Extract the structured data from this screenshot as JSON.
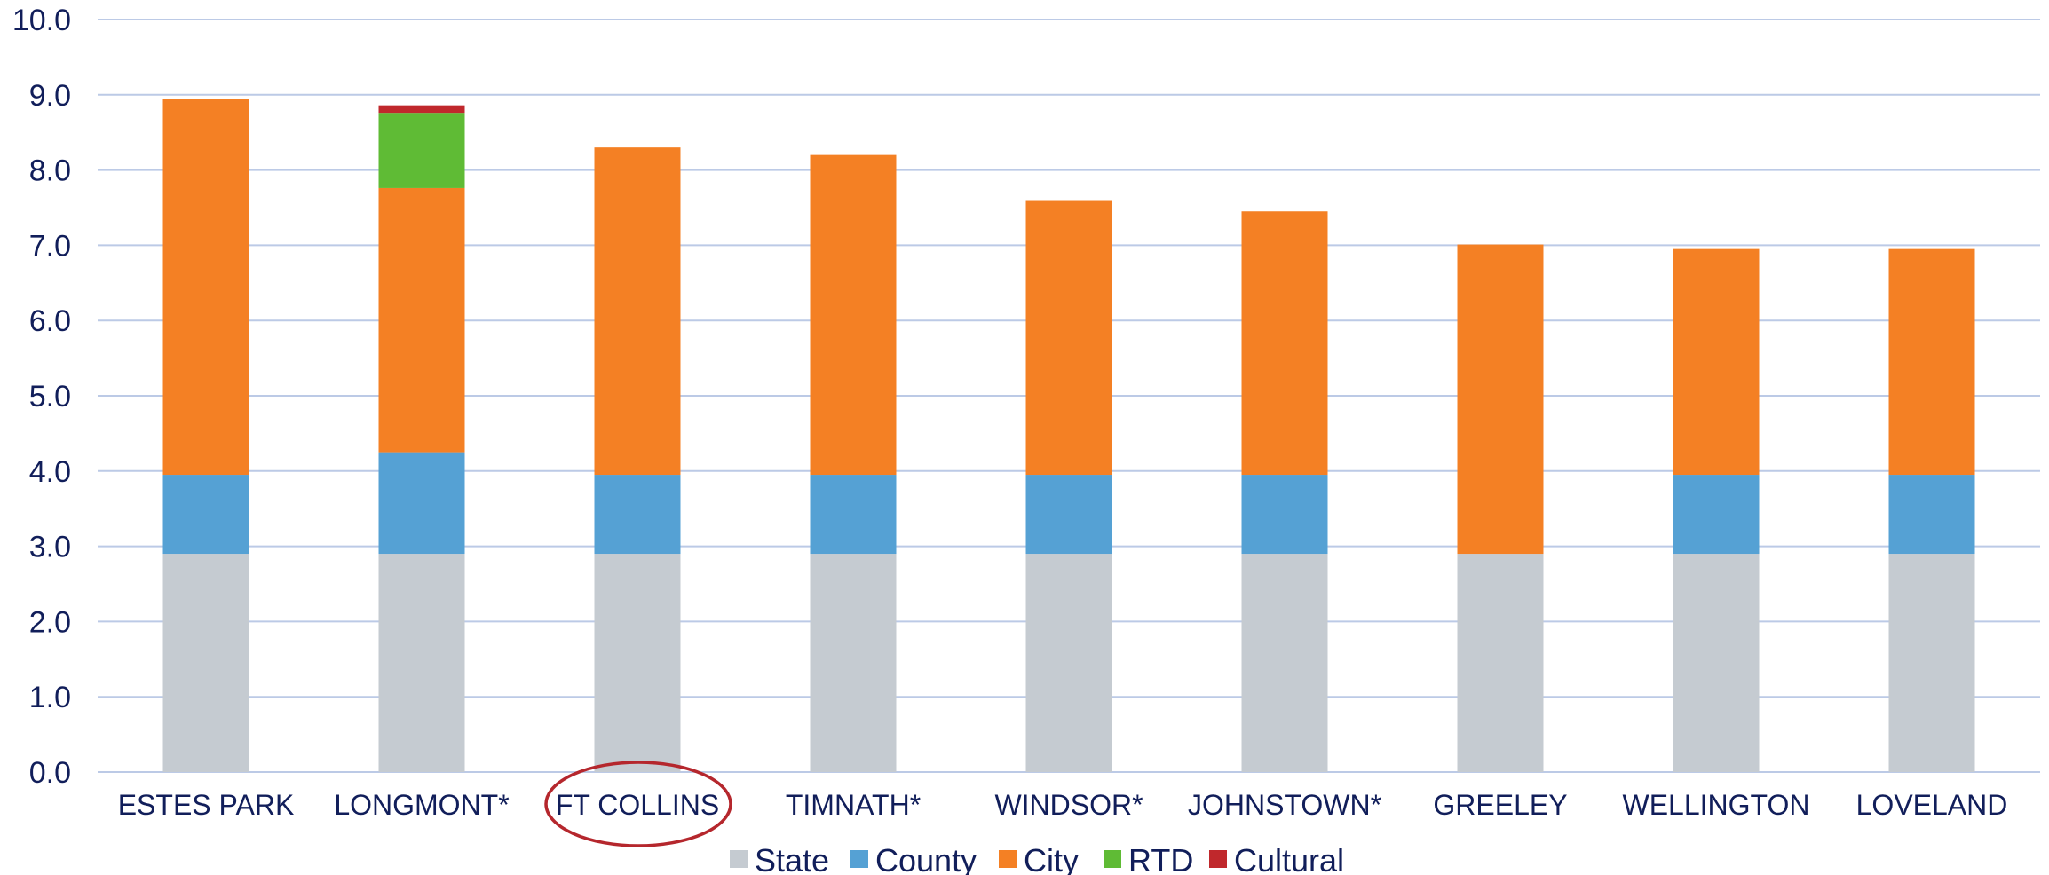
{
  "chart_data": {
    "type": "bar",
    "stacked": true,
    "categories": [
      "ESTES PARK",
      "LONGMONT*",
      "FT COLLINS",
      "TIMNATH*",
      "WINDSOR*",
      "JOHNSTOWN*",
      "GREELEY",
      "WELLINGTON",
      "LOVELAND"
    ],
    "series": [
      {
        "name": "State",
        "color": "#c5cbd1",
        "values": [
          2.9,
          2.9,
          2.9,
          2.9,
          2.9,
          2.9,
          2.9,
          2.9,
          2.9
        ]
      },
      {
        "name": "County",
        "color": "#55a1d4",
        "values": [
          1.05,
          1.35,
          1.05,
          1.05,
          1.05,
          1.05,
          0,
          1.05,
          1.05
        ]
      },
      {
        "name": "City",
        "color": "#f48024",
        "values": [
          5.0,
          3.51,
          4.35,
          4.25,
          3.65,
          3.5,
          4.11,
          3.0,
          3.0
        ]
      },
      {
        "name": "RTD",
        "color": "#5fbb35",
        "values": [
          0,
          1.0,
          0,
          0,
          0,
          0,
          0,
          0,
          0
        ]
      },
      {
        "name": "Cultural",
        "color": "#c0282c",
        "values": [
          0,
          0.1,
          0,
          0,
          0,
          0,
          0,
          0,
          0
        ]
      }
    ],
    "ylim": [
      0,
      10
    ],
    "yticks": [
      "0.0",
      "1.0",
      "2.0",
      "3.0",
      "4.0",
      "5.0",
      "6.0",
      "7.0",
      "8.0",
      "9.0",
      "10.0"
    ],
    "grid": true,
    "legend": "bottom",
    "highlight": {
      "category": "FT COLLINS",
      "shape": "ellipse",
      "color": "#b5272d"
    },
    "gridColor": "#bccae6",
    "textColor": "#111e5a"
  }
}
